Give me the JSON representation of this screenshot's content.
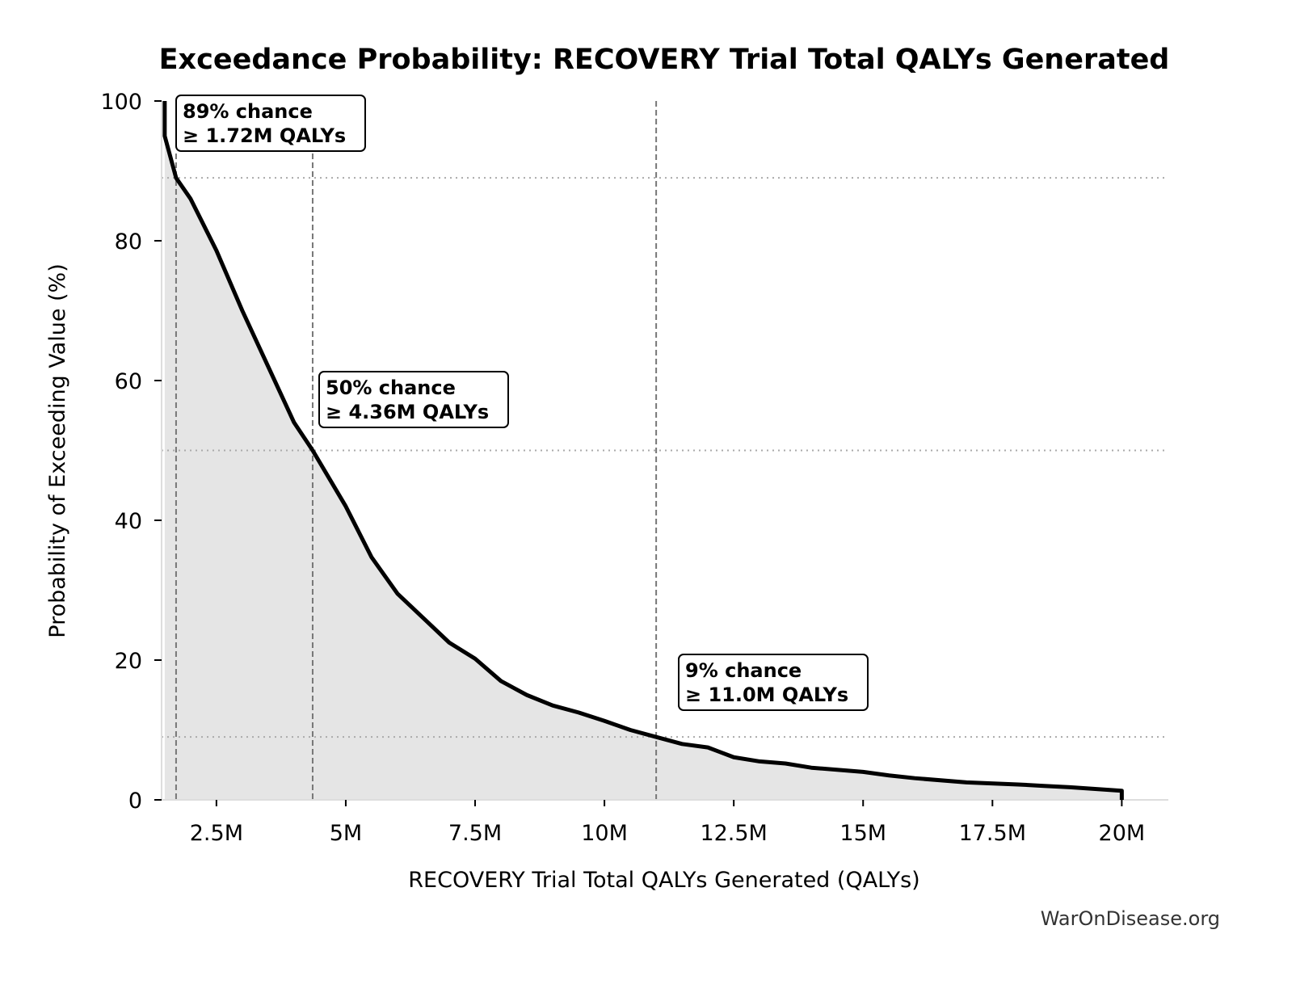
{
  "chart_data": {
    "type": "area",
    "title": "Exceedance Probability: RECOVERY Trial Total QALYs Generated",
    "xlabel": "RECOVERY Trial Total QALYs Generated (QALYs)",
    "ylabel": "Probability of Exceeding Value (%)",
    "xlim": [
      1.44,
      20.9
    ],
    "ylim": [
      0,
      100
    ],
    "x_unit": "million QALYs",
    "x_ticks": [
      2.5,
      5,
      7.5,
      10,
      12.5,
      15,
      17.5,
      20
    ],
    "x_tick_labels": [
      "2.5M",
      "5M",
      "7.5M",
      "10M",
      "12.5M",
      "15M",
      "17.5M",
      "20M"
    ],
    "y_ticks": [
      0,
      20,
      40,
      60,
      80,
      100
    ],
    "y_tick_labels": [
      "0",
      "20",
      "40",
      "60",
      "80",
      "100"
    ],
    "grid": false,
    "line_color": "#000000",
    "fill_color": "#e5e5e5",
    "series": [
      {
        "x": [
          1.5,
          1.5,
          1.72,
          2.0,
          2.5,
          3.0,
          3.5,
          4.0,
          4.36,
          5.0,
          5.5,
          6.0,
          6.5,
          7.0,
          7.5,
          8.0,
          8.5,
          9.0,
          9.5,
          10.0,
          10.5,
          11.0,
          11.5,
          12.0,
          12.5,
          13.0,
          13.5,
          14.0,
          15.0,
          15.5,
          16.0,
          17.0,
          18.0,
          18.5,
          19.0,
          20.0,
          20.0
        ],
        "y": [
          100,
          95,
          89,
          86,
          78.6,
          70,
          62,
          54,
          50,
          42,
          34.7,
          29.5,
          26,
          22.5,
          20.2,
          17,
          15,
          13.5,
          12.5,
          11.3,
          10,
          9,
          8,
          7.5,
          6.1,
          5.5,
          5.2,
          4.6,
          4,
          3.5,
          3.1,
          2.5,
          2.2,
          2,
          1.8,
          1.3,
          0
        ]
      }
    ],
    "reference_lines": [
      {
        "x": 1.72,
        "y": 89
      },
      {
        "x": 4.36,
        "y": 50
      },
      {
        "x": 11.0,
        "y": 9
      }
    ],
    "annotations": [
      {
        "line1": "89% chance",
        "line2": "≥ 1.72M QALYs"
      },
      {
        "line1": "50% chance",
        "line2": "≥ 4.36M QALYs"
      },
      {
        "line1": "9% chance",
        "line2": "≥ 11.0M QALYs"
      }
    ]
  },
  "footer": "WarOnDisease.org"
}
